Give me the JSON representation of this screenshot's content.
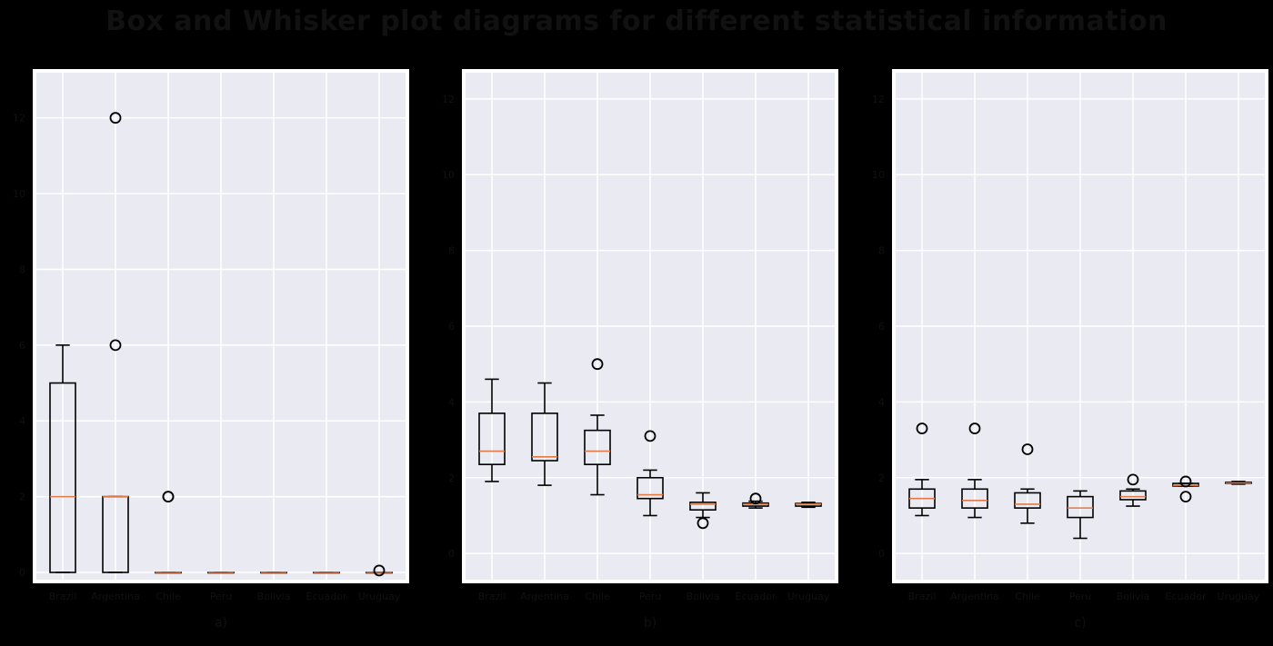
{
  "figure": {
    "title": "Box and Whisker plot diagrams for different statistical information"
  },
  "chart_data": [
    {
      "type": "box",
      "panel_label": "a)",
      "categories": [
        "Brazil",
        "Argentina",
        "Chile",
        "Peru",
        "Bolivia",
        "Ecuador",
        "Uruguay"
      ],
      "ylim": [
        0,
        13
      ],
      "yticks": [
        0,
        2,
        4,
        6,
        8,
        10,
        12
      ],
      "grid": true,
      "boxes": [
        {
          "whislo": 0,
          "q1": 0,
          "med": 2,
          "q3": 5,
          "whishi": 6,
          "fliers": []
        },
        {
          "whislo": 0,
          "q1": 0,
          "med": 2,
          "q3": 2,
          "whishi": 2,
          "fliers": [
            6,
            12
          ]
        },
        {
          "whislo": 0,
          "q1": 0,
          "med": 0,
          "q3": 0,
          "whishi": 0,
          "fliers": [
            2,
            2
          ]
        },
        {
          "whislo": 0,
          "q1": 0,
          "med": 0,
          "q3": 0,
          "whishi": 0,
          "fliers": []
        },
        {
          "whislo": 0,
          "q1": 0,
          "med": 0,
          "q3": 0,
          "whishi": 0,
          "fliers": []
        },
        {
          "whislo": 0,
          "q1": 0,
          "med": 0,
          "q3": 0,
          "whishi": 0,
          "fliers": []
        },
        {
          "whislo": 0,
          "q1": 0,
          "med": 0,
          "q3": 0,
          "whishi": 0,
          "fliers": [
            0.05
          ]
        }
      ]
    },
    {
      "type": "box",
      "panel_label": "b)",
      "categories": [
        "Brazil",
        "Argentina",
        "Chile",
        "Peru",
        "Bolivia",
        "Ecuador",
        "Uruguay"
      ],
      "ylim": [
        -0.5,
        12.5
      ],
      "yticks": [
        0,
        2,
        4,
        6,
        8,
        10,
        12
      ],
      "grid": true,
      "boxes": [
        {
          "whislo": 1.9,
          "q1": 2.35,
          "med": 2.7,
          "q3": 3.7,
          "whishi": 4.6,
          "fliers": []
        },
        {
          "whislo": 1.8,
          "q1": 2.45,
          "med": 2.55,
          "q3": 3.7,
          "whishi": 4.5,
          "fliers": []
        },
        {
          "whislo": 1.55,
          "q1": 2.35,
          "med": 2.7,
          "q3": 3.25,
          "whishi": 3.65,
          "fliers": [
            5.0
          ]
        },
        {
          "whislo": 1.0,
          "q1": 1.45,
          "med": 1.55,
          "q3": 2.0,
          "whishi": 2.2,
          "fliers": [
            3.1
          ]
        },
        {
          "whislo": 0.95,
          "q1": 1.15,
          "med": 1.3,
          "q3": 1.35,
          "whishi": 1.6,
          "fliers": [
            0.8
          ]
        },
        {
          "whislo": 1.2,
          "q1": 1.25,
          "med": 1.3,
          "q3": 1.33,
          "whishi": 1.38,
          "fliers": [
            1.45
          ]
        },
        {
          "whislo": 1.22,
          "q1": 1.25,
          "med": 1.3,
          "q3": 1.32,
          "whishi": 1.35,
          "fliers": []
        }
      ]
    },
    {
      "type": "box",
      "panel_label": "c)",
      "categories": [
        "Brazil",
        "Argentina",
        "Chile",
        "Peru",
        "Bolivia",
        "Ecuador",
        "Uruguay"
      ],
      "ylim": [
        -0.5,
        12.5
      ],
      "yticks": [
        0,
        2,
        4,
        6,
        8,
        10,
        12
      ],
      "grid": true,
      "boxes": [
        {
          "whislo": 1.0,
          "q1": 1.2,
          "med": 1.45,
          "q3": 1.7,
          "whishi": 1.95,
          "fliers": [
            3.3
          ]
        },
        {
          "whislo": 0.95,
          "q1": 1.2,
          "med": 1.4,
          "q3": 1.7,
          "whishi": 1.95,
          "fliers": [
            3.3
          ]
        },
        {
          "whislo": 0.8,
          "q1": 1.2,
          "med": 1.3,
          "q3": 1.6,
          "whishi": 1.7,
          "fliers": [
            2.75
          ]
        },
        {
          "whislo": 0.4,
          "q1": 0.95,
          "med": 1.2,
          "q3": 1.5,
          "whishi": 1.65,
          "fliers": []
        },
        {
          "whislo": 1.25,
          "q1": 1.42,
          "med": 1.5,
          "q3": 1.65,
          "whishi": 1.7,
          "fliers": [
            1.95
          ]
        },
        {
          "whislo": 1.78,
          "q1": 1.78,
          "med": 1.8,
          "q3": 1.85,
          "whishi": 1.85,
          "fliers": [
            1.5,
            1.9
          ]
        },
        {
          "whislo": 1.83,
          "q1": 1.85,
          "med": 1.86,
          "q3": 1.88,
          "whishi": 1.9,
          "fliers": []
        }
      ]
    }
  ],
  "colors": {
    "background": "#000000",
    "panel_background": "#eaeaf2",
    "frame": "#ffffff",
    "grid": "#ffffff",
    "box": "#000000",
    "median": "#e07b47",
    "text": "#111111"
  }
}
